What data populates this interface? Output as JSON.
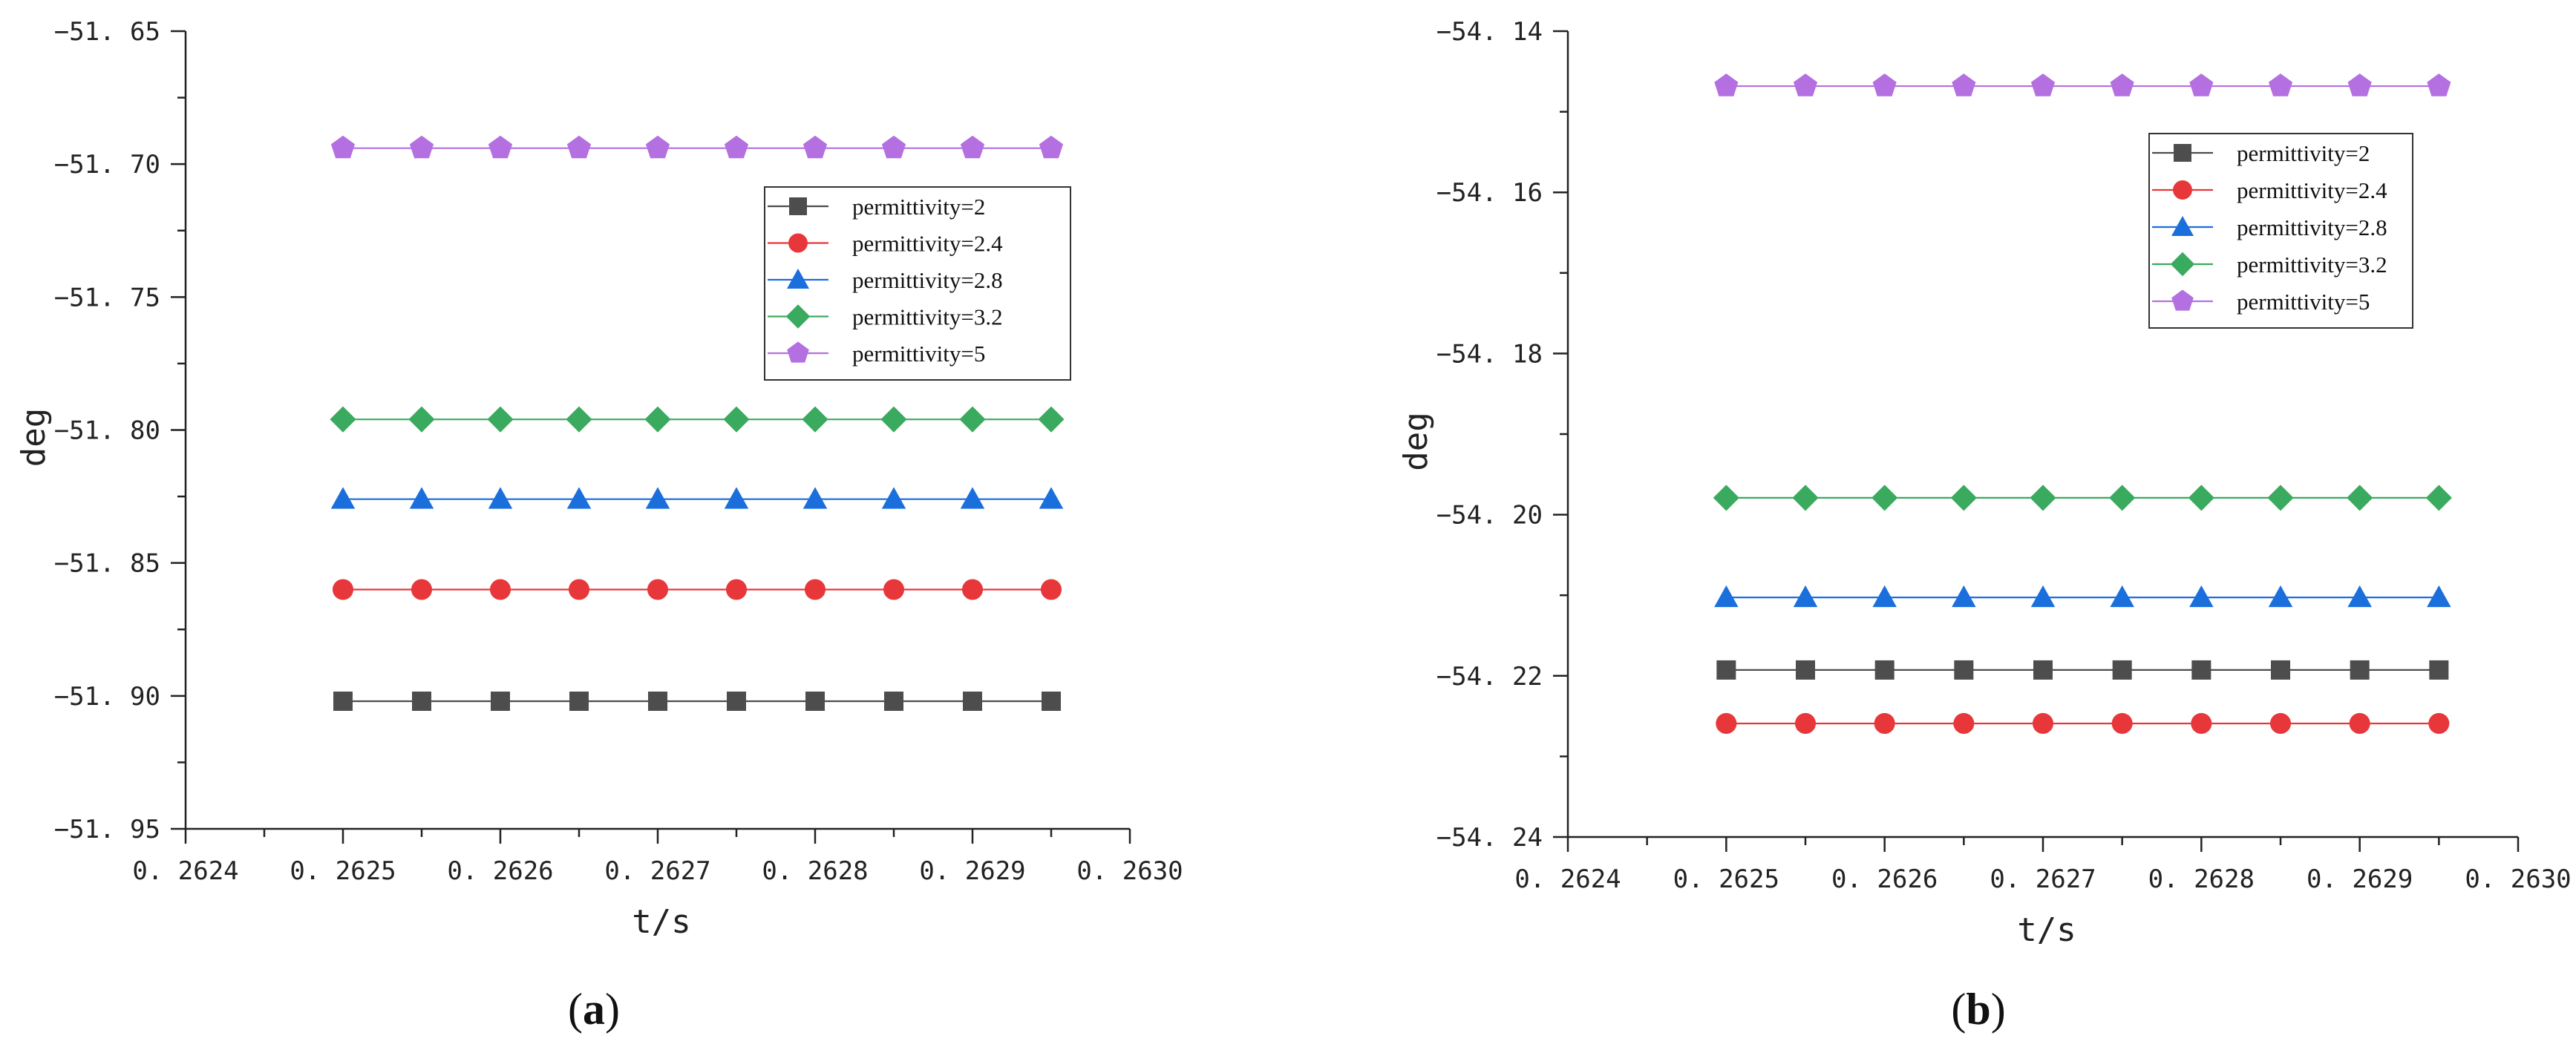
{
  "chart_data": [
    {
      "type": "line",
      "panel_label": "(a)",
      "title": "",
      "xlabel": "t/s",
      "ylabel": "deg",
      "xlim": [
        0.2624,
        0.263
      ],
      "ylim": [
        -51.95,
        -51.65
      ],
      "x_ticks": [
        "0.2624",
        "0.2625",
        "0.2626",
        "0.2627",
        "0.2628",
        "0.2629",
        "0.2630"
      ],
      "y_ticks": [
        "-51.95",
        "-51.90",
        "-51.85",
        "-51.80",
        "-51.75",
        "-51.70",
        "-51.65"
      ],
      "x": [
        0.2625,
        0.26255,
        0.2626,
        0.26265,
        0.2627,
        0.26275,
        0.2628,
        0.26285,
        0.2629,
        0.26295
      ],
      "legend_position": "top-right",
      "grid": false,
      "series": [
        {
          "name": "permittivity=2",
          "color": "#4d4d4d",
          "marker": "square",
          "y": -51.902
        },
        {
          "name": "permittivity=2.4",
          "color": "#e8373a",
          "marker": "circle",
          "y": -51.86
        },
        {
          "name": "permittivity=2.8",
          "color": "#1a6fdc",
          "marker": "triangle",
          "y": -51.826
        },
        {
          "name": "permittivity=3.2",
          "color": "#3aaa5e",
          "marker": "diamond",
          "y": -51.796
        },
        {
          "name": "permittivity=5",
          "color": "#b470e0",
          "marker": "pentagon",
          "y": -51.694
        }
      ]
    },
    {
      "type": "line",
      "panel_label": "(b)",
      "title": "",
      "xlabel": "t/s",
      "ylabel": "deg",
      "xlim": [
        0.2624,
        0.263
      ],
      "ylim": [
        -54.24,
        -54.13
      ],
      "x_ticks": [
        "0.2624",
        "0.2625",
        "0.2626",
        "0.2627",
        "0.2628",
        "0.2629",
        "0.2630"
      ],
      "y_ticks": [
        "-54.24",
        "-54.22",
        "-54.20",
        "-54.18",
        "-54.16",
        "-54.14"
      ],
      "x": [
        0.2625,
        0.26255,
        0.2626,
        0.26265,
        0.2627,
        0.26275,
        0.2628,
        0.26285,
        0.2629,
        0.26295
      ],
      "legend_position": "top-right",
      "grid": false,
      "series": [
        {
          "name": "permittivity=2",
          "color": "#4d4d4d",
          "marker": "square",
          "y": -54.2172
        },
        {
          "name": "permittivity=2.4",
          "color": "#e8373a",
          "marker": "circle",
          "y": -54.2245
        },
        {
          "name": "permittivity=2.8",
          "color": "#1a6fdc",
          "marker": "triangle",
          "y": -54.2073
        },
        {
          "name": "permittivity=3.2",
          "color": "#3aaa5e",
          "marker": "diamond",
          "y": -54.1937
        },
        {
          "name": "permittivity=5",
          "color": "#b470e0",
          "marker": "pentagon",
          "y": -54.1375
        }
      ]
    }
  ]
}
